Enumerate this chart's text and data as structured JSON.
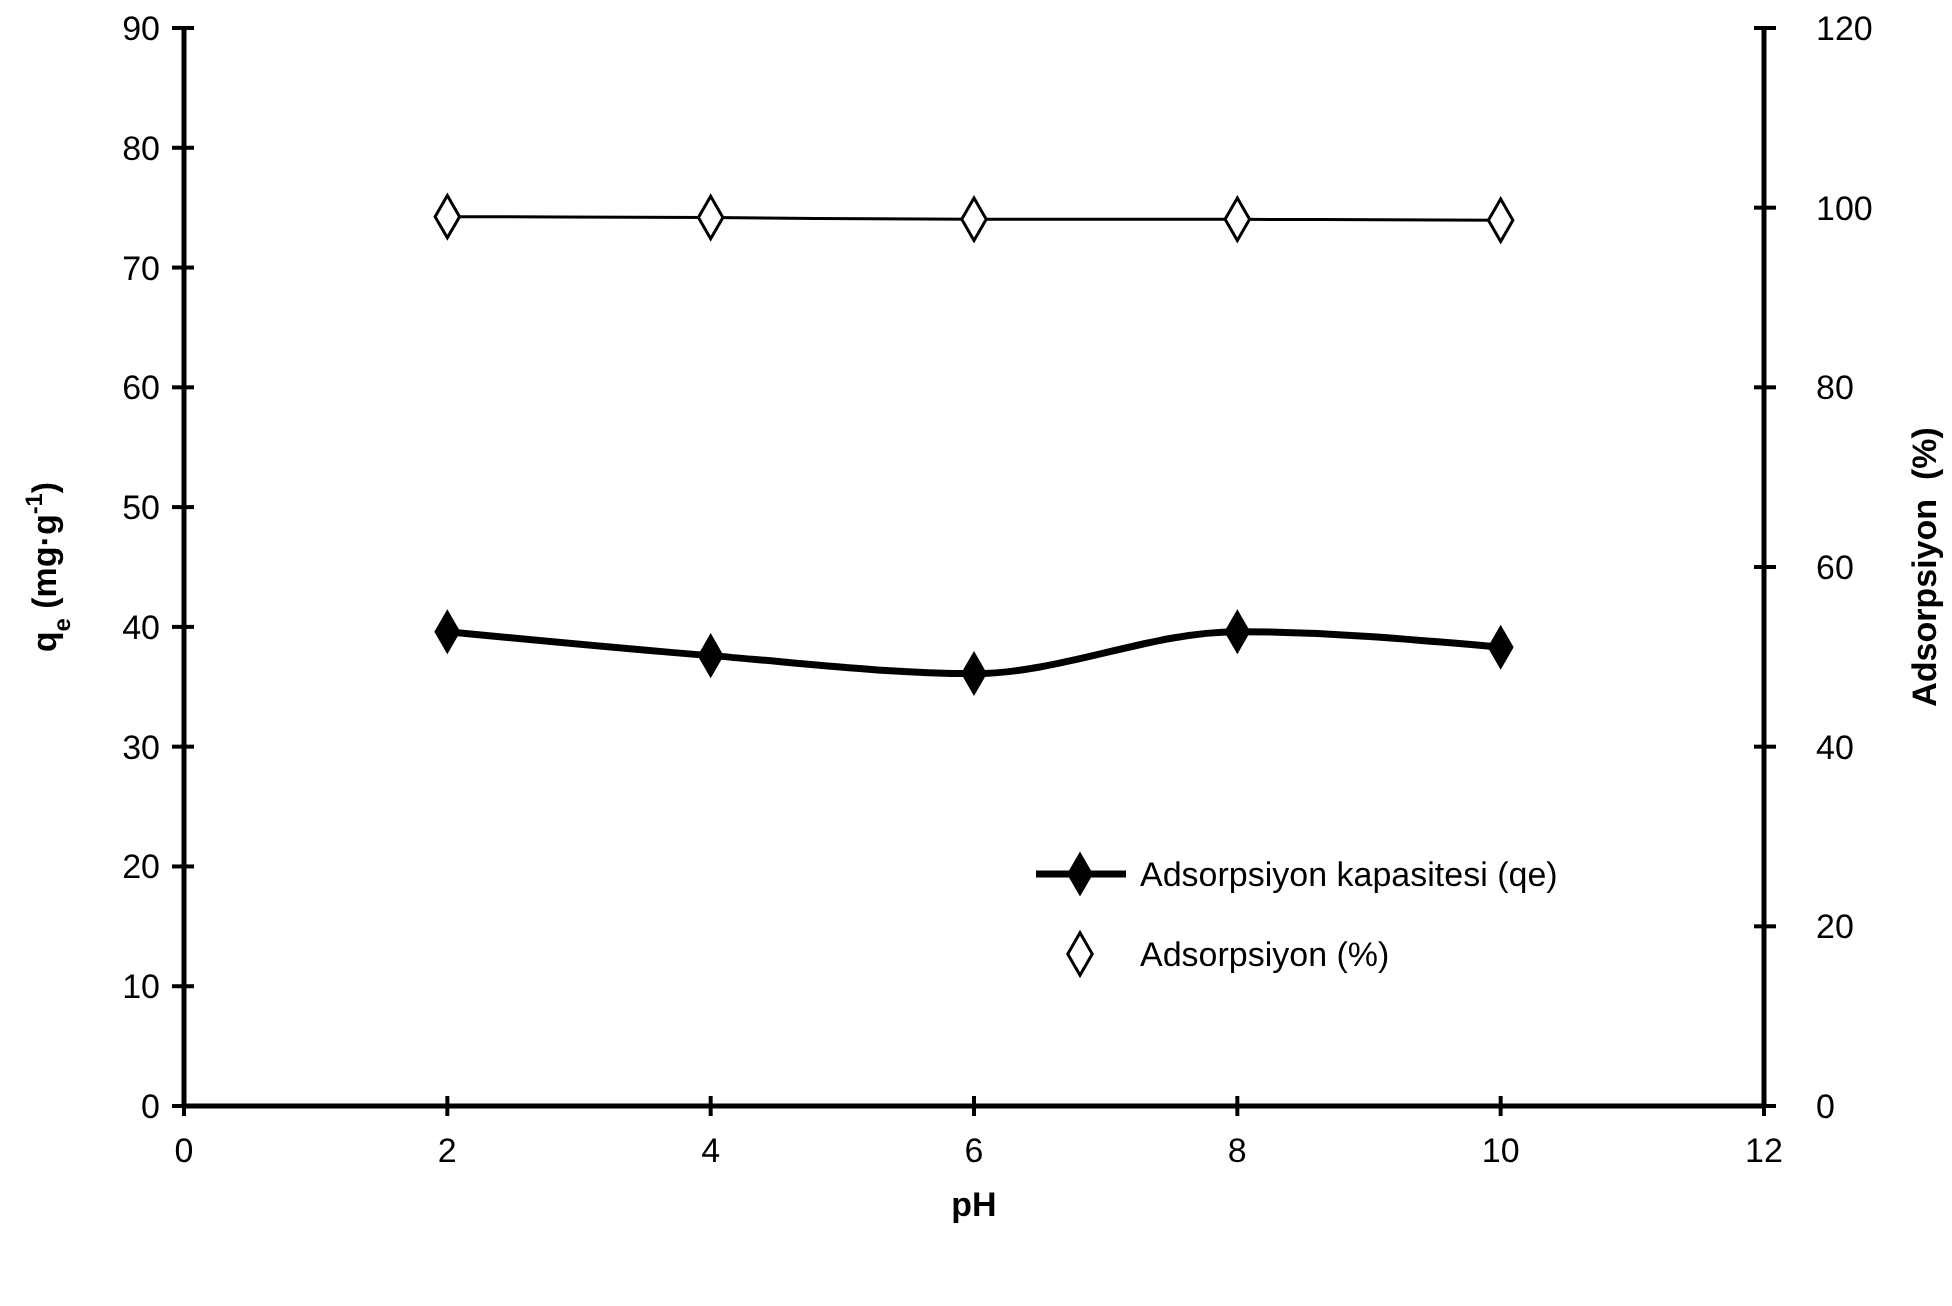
{
  "chart_data": {
    "type": "line",
    "xlabel": "pH",
    "ylabel": "q$_{e}$ (mg·g$^{-1}$)",
    "y2label": "Adsorpsiyon  (%)",
    "x": [
      2,
      4,
      6,
      8,
      10
    ],
    "series": [
      {
        "name": "Adsorpsiyon kapasitesi (qe)",
        "color": "#000000",
        "values": [
          39.6,
          37.6,
          36.1,
          39.6,
          38.3
        ]
      },
      {
        "name": "Adsorpsiyon (%)",
        "color": "#000000",
        "axis": "y2",
        "values": [
          99.0,
          98.9,
          98.7,
          98.7,
          98.6
        ]
      }
    ],
    "xlim": [
      0,
      12
    ],
    "xticks": [
      0,
      2,
      4,
      6,
      8,
      10,
      12
    ],
    "ylim": [
      0,
      90
    ],
    "yticks": [
      0,
      10,
      20,
      30,
      40,
      50,
      60,
      70,
      80,
      90
    ],
    "y2lim": [
      0,
      120
    ],
    "y2ticks": [
      0,
      20,
      40,
      60,
      80,
      100,
      120
    ],
    "marker": "diamond",
    "legend": "bottom right",
    "grid": false
  }
}
